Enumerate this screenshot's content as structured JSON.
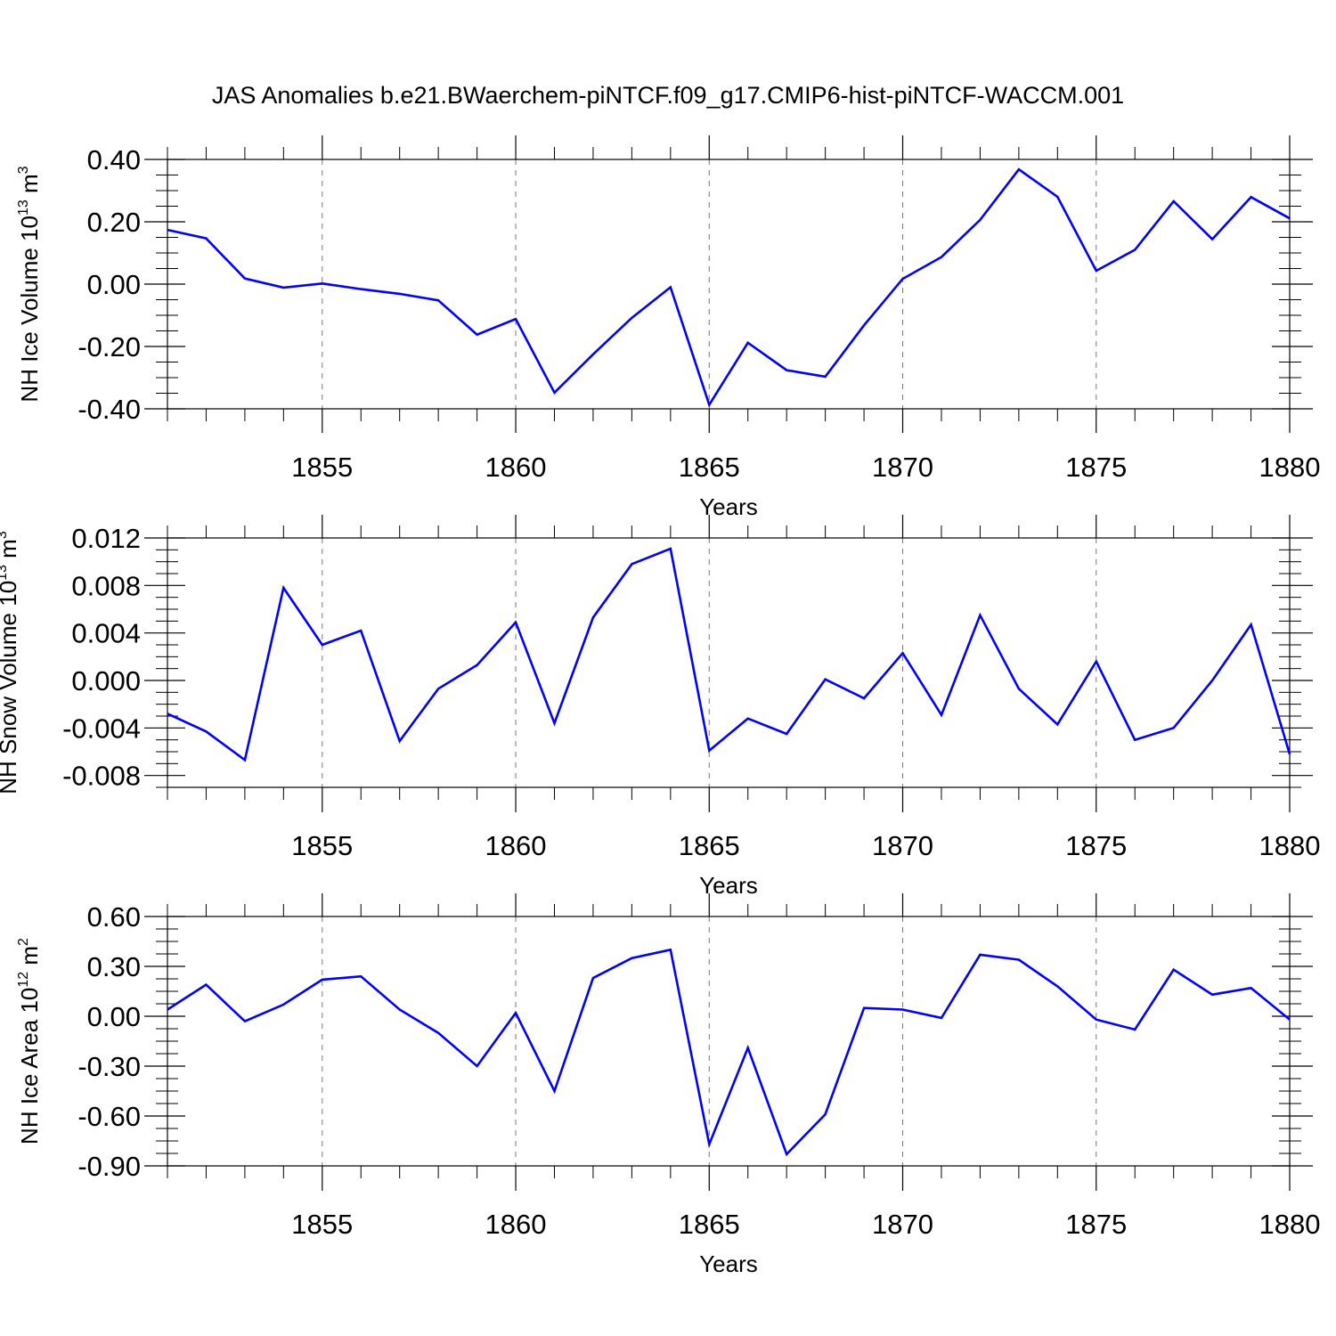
{
  "title": "JAS Anomalies b.e21.BWaerchem-piNTCF.f09_g17.CMIP6-hist-piNTCF-WACCM.001",
  "colors": {
    "line": "#0000ff",
    "frame": "#000000",
    "grid": "#777777"
  },
  "chart_data": [
    {
      "type": "line",
      "ylabel_base": "NH Ice Volume 10",
      "ylabel_exp": "13",
      "ylabel_unit": " m",
      "ylabel_unit_exp": "3",
      "xlabel": "Years",
      "xlim": [
        1851,
        1880
      ],
      "ylim": [
        -0.4,
        0.4
      ],
      "yticks": [
        -0.4,
        -0.2,
        0.0,
        0.2,
        0.4
      ],
      "ytick_labels": [
        "-0.40",
        "-0.20",
        "0.00",
        "0.20",
        "0.40"
      ],
      "xticks": [
        1855,
        1860,
        1865,
        1870,
        1875,
        1880
      ],
      "xtick_labels": [
        "1855",
        "1860",
        "1865",
        "1870",
        "1875",
        "1880"
      ],
      "grid": "vertical dashed at major x ticks",
      "x": [
        1851,
        1852,
        1853,
        1854,
        1855,
        1856,
        1857,
        1858,
        1859,
        1860,
        1861,
        1862,
        1863,
        1864,
        1865,
        1866,
        1867,
        1868,
        1869,
        1870,
        1871,
        1872,
        1873,
        1874,
        1875,
        1876,
        1877,
        1878,
        1879,
        1880
      ],
      "values": [
        0.174,
        0.147,
        0.018,
        -0.011,
        0.002,
        -0.016,
        -0.031,
        -0.052,
        -0.162,
        -0.112,
        -0.348,
        -0.225,
        -0.108,
        -0.01,
        -0.387,
        -0.188,
        -0.276,
        -0.297,
        -0.132,
        0.017,
        0.087,
        0.206,
        0.368,
        0.28,
        0.043,
        0.11,
        0.266,
        0.144,
        0.279,
        0.211
      ]
    },
    {
      "type": "line",
      "ylabel_base": "NH Snow Volume 10",
      "ylabel_exp": "13",
      "ylabel_unit": " m",
      "ylabel_unit_exp": "3",
      "xlabel": "Years",
      "xlim": [
        1851,
        1880
      ],
      "ylim": [
        -0.009,
        0.012
      ],
      "yticks": [
        -0.008,
        -0.004,
        0.0,
        0.004,
        0.008,
        0.012
      ],
      "ytick_labels": [
        "-0.008",
        "-0.004",
        "0.000",
        "0.004",
        "0.008",
        "0.012"
      ],
      "xticks": [
        1855,
        1860,
        1865,
        1870,
        1875,
        1880
      ],
      "xtick_labels": [
        "1855",
        "1860",
        "1865",
        "1870",
        "1875",
        "1880"
      ],
      "grid": "vertical dashed at major x ticks",
      "x": [
        1851,
        1852,
        1853,
        1854,
        1855,
        1856,
        1857,
        1858,
        1859,
        1860,
        1861,
        1862,
        1863,
        1864,
        1865,
        1866,
        1867,
        1868,
        1869,
        1870,
        1871,
        1872,
        1873,
        1874,
        1875,
        1876,
        1877,
        1878,
        1879,
        1880
      ],
      "values": [
        -0.0028,
        -0.0043,
        -0.0067,
        0.0078,
        0.003,
        0.0042,
        -0.0051,
        -0.0007,
        0.0013,
        0.0049,
        -0.0036,
        0.0053,
        0.0098,
        0.0111,
        -0.0059,
        -0.0032,
        -0.0045,
        0.0001,
        -0.0015,
        0.0023,
        -0.0029,
        0.0055,
        -0.0007,
        -0.0037,
        0.0016,
        -0.005,
        -0.004,
        0.0,
        0.0047,
        -0.0062
      ]
    },
    {
      "type": "line",
      "ylabel_base": "NH Ice Area 10",
      "ylabel_exp": "12",
      "ylabel_unit": " m",
      "ylabel_unit_exp": "2",
      "xlabel": "Years",
      "xlim": [
        1851,
        1880
      ],
      "ylim": [
        -0.9,
        0.6
      ],
      "yticks": [
        -0.9,
        -0.6,
        -0.3,
        0.0,
        0.3,
        0.6
      ],
      "ytick_labels": [
        "-0.90",
        "-0.60",
        "-0.30",
        "0.00",
        "0.30",
        "0.60"
      ],
      "xticks": [
        1855,
        1860,
        1865,
        1870,
        1875,
        1880
      ],
      "xtick_labels": [
        "1855",
        "1860",
        "1865",
        "1870",
        "1875",
        "1880"
      ],
      "grid": "vertical dashed at major x ticks",
      "x": [
        1851,
        1852,
        1853,
        1854,
        1855,
        1856,
        1857,
        1858,
        1859,
        1860,
        1861,
        1862,
        1863,
        1864,
        1865,
        1866,
        1867,
        1868,
        1869,
        1870,
        1871,
        1872,
        1873,
        1874,
        1875,
        1876,
        1877,
        1878,
        1879,
        1880
      ],
      "values": [
        0.04,
        0.19,
        -0.03,
        0.07,
        0.22,
        0.24,
        0.04,
        -0.1,
        -0.3,
        0.02,
        -0.45,
        0.23,
        0.35,
        0.4,
        -0.77,
        -0.19,
        -0.83,
        -0.59,
        0.05,
        0.04,
        -0.01,
        0.37,
        0.34,
        0.18,
        -0.02,
        -0.08,
        0.28,
        0.13,
        0.17,
        -0.02
      ]
    }
  ]
}
